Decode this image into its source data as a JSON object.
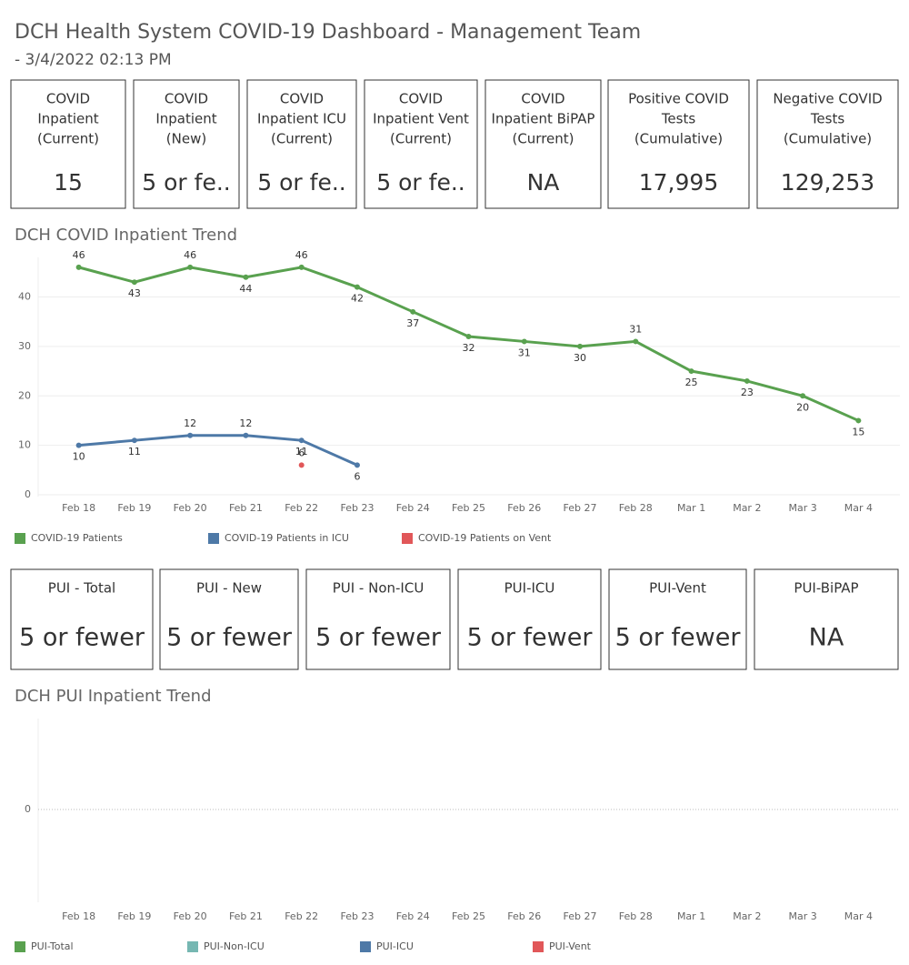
{
  "header": {
    "title": "DCH Health System COVID-19 Dashboard - Management Team",
    "subtitle": "- 3/4/2022 02:13 PM"
  },
  "cards": [
    {
      "title": [
        "COVID",
        "Inpatient",
        "(Current)"
      ],
      "value": "15"
    },
    {
      "title": [
        "COVID",
        "Inpatient",
        "(New)"
      ],
      "value": "5 or fe.."
    },
    {
      "title": [
        "COVID",
        "Inpatient ICU",
        "(Current)"
      ],
      "value": "5 or fe.."
    },
    {
      "title": [
        "COVID",
        "Inpatient Vent",
        "(Current)"
      ],
      "value": "5 or fe.."
    },
    {
      "title": [
        "COVID",
        "Inpatient BiPAP",
        "(Current)"
      ],
      "value": "NA"
    },
    {
      "title": [
        "Positive COVID",
        "Tests",
        "(Cumulative)"
      ],
      "value": "17,995"
    },
    {
      "title": [
        "Negative COVID",
        "Tests",
        "(Cumulative)"
      ],
      "value": "129,253"
    }
  ],
  "pui_cards": [
    {
      "title": [
        "PUI - Total"
      ],
      "value": "5 or fewer"
    },
    {
      "title": [
        "PUI - New"
      ],
      "value": "5 or fewer"
    },
    {
      "title": [
        "PUI - Non-ICU"
      ],
      "value": "5 or fewer"
    },
    {
      "title": [
        "PUI-ICU"
      ],
      "value": "5 or fewer"
    },
    {
      "title": [
        "PUI-Vent"
      ],
      "value": "5 or fewer"
    },
    {
      "title": [
        "PUI-BiPAP"
      ],
      "value": "NA"
    }
  ],
  "chart_data": [
    {
      "type": "line",
      "title": "DCH COVID Inpatient Trend",
      "categories": [
        "Feb 18",
        "Feb 19",
        "Feb 20",
        "Feb 21",
        "Feb 22",
        "Feb 23",
        "Feb 24",
        "Feb 25",
        "Feb 26",
        "Feb 27",
        "Feb 28",
        "Mar 1",
        "Mar 2",
        "Mar 3",
        "Mar 4"
      ],
      "series": [
        {
          "name": "COVID-19 Patients",
          "color": "#59a14f",
          "values": [
            46,
            43,
            46,
            44,
            46,
            42,
            37,
            32,
            31,
            30,
            31,
            25,
            23,
            20,
            15
          ]
        },
        {
          "name": "COVID-19 Patients in ICU",
          "color": "#4e79a7",
          "values": [
            10,
            11,
            12,
            12,
            11,
            6,
            null,
            null,
            null,
            null,
            null,
            null,
            null,
            null,
            null
          ]
        },
        {
          "name": "COVID-19 Patients on Vent",
          "color": "#e15759",
          "values": [
            null,
            null,
            null,
            null,
            6,
            null,
            null,
            null,
            null,
            null,
            null,
            null,
            null,
            null,
            null
          ]
        }
      ],
      "ylim": [
        0,
        48
      ],
      "yticks": [
        0,
        10,
        20,
        30,
        40
      ],
      "grid": true,
      "grid_style": "solid",
      "data_labels": true
    },
    {
      "type": "line",
      "title": "DCH PUI Inpatient Trend",
      "categories": [
        "Feb 18",
        "Feb 19",
        "Feb 20",
        "Feb 21",
        "Feb 22",
        "Feb 23",
        "Feb 24",
        "Feb 25",
        "Feb 26",
        "Feb 27",
        "Feb 28",
        "Mar 1",
        "Mar 2",
        "Mar 3",
        "Mar 4"
      ],
      "series": [
        {
          "name": "PUI-Total",
          "color": "#59a14f",
          "values": [
            null,
            null,
            null,
            null,
            null,
            null,
            null,
            null,
            null,
            null,
            null,
            null,
            null,
            null,
            null
          ]
        },
        {
          "name": "PUI-Non-ICU",
          "color": "#76b7b2",
          "values": [
            null,
            null,
            null,
            null,
            null,
            null,
            null,
            null,
            null,
            null,
            null,
            null,
            null,
            null,
            null
          ]
        },
        {
          "name": "PUI-ICU",
          "color": "#4e79a7",
          "values": [
            null,
            null,
            null,
            null,
            null,
            null,
            null,
            null,
            null,
            null,
            null,
            null,
            null,
            null,
            null
          ]
        },
        {
          "name": "PUI-Vent",
          "color": "#e15759",
          "values": [
            null,
            null,
            null,
            null,
            null,
            null,
            null,
            null,
            null,
            null,
            null,
            null,
            null,
            null,
            null
          ]
        }
      ],
      "ylim": [
        -1,
        1
      ],
      "yticks": [
        0
      ],
      "grid": true,
      "grid_style": "dotted",
      "data_labels": true
    }
  ]
}
